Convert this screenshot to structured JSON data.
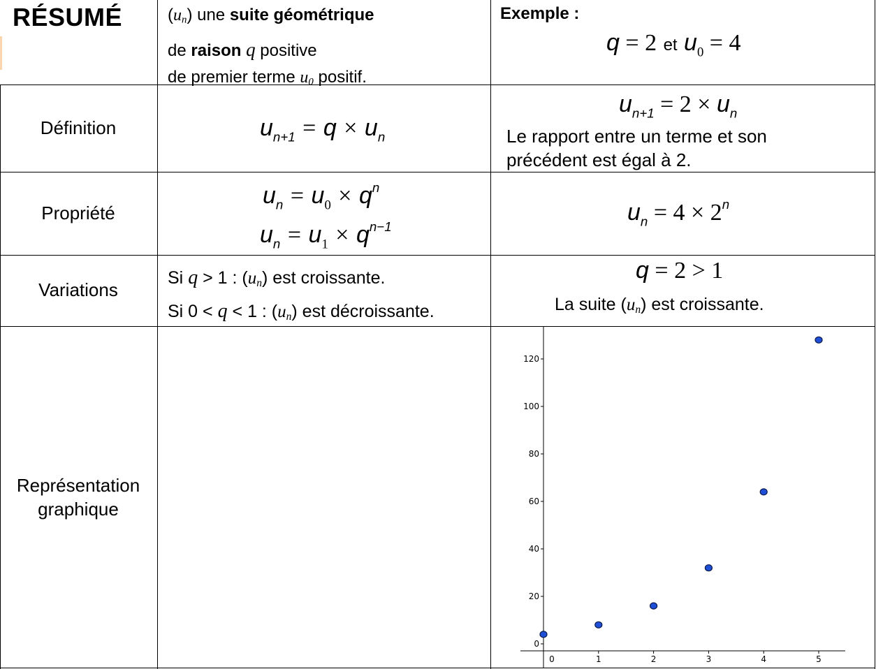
{
  "header": {
    "title": "RÉSUMÉ",
    "intro": {
      "line1_prefix": "(",
      "line1_var": "u",
      "line1_sub": "n",
      "line1_mid": ") une ",
      "line1_bold": "suite géométrique",
      "line2_prefix": "de ",
      "line2_bold": "raison",
      "line2_var": "q",
      "line2_suffix": " positive",
      "line3_prefix": "de premier terme ",
      "line3_var": "u",
      "line3_sub": "0",
      "line3_suffix": " positif."
    },
    "example": {
      "label": "Exemple :",
      "q_var": "q",
      "q_eq": " = 2",
      "and": "et",
      "u_var": "u",
      "u_sub": "0",
      "u_eq": " = 4"
    }
  },
  "rows": {
    "definition": {
      "label": "Définition",
      "formula": {
        "lhs_var": "u",
        "lhs_sub": "n+1",
        "eq": " = ",
        "q": "q",
        "times": " × ",
        "rhs_var": "u",
        "rhs_sub": "n"
      },
      "example_formula": {
        "lhs_var": "u",
        "lhs_sub": "n+1",
        "eq": " = 2 × ",
        "rhs_var": "u",
        "rhs_sub": "n"
      },
      "example_text_line1": "Le rapport entre un terme et son",
      "example_text_line2": "précédent est égal à 2."
    },
    "property": {
      "label": "Propriété",
      "formula1": {
        "lhs_var": "u",
        "lhs_sub": "n",
        "eq": " = ",
        "rhs_var": "u",
        "rhs_sub": "0",
        "times": " × ",
        "q": "q",
        "exp": "n"
      },
      "formula2": {
        "lhs_var": "u",
        "lhs_sub": "n",
        "eq": " = ",
        "rhs_var": "u",
        "rhs_sub": "1",
        "times": " × ",
        "q": "q",
        "exp": "n−1"
      },
      "example_formula": {
        "lhs_var": "u",
        "lhs_sub": "n",
        "eq": " = 4 × 2",
        "exp": "n"
      }
    },
    "variations": {
      "label": "Variations",
      "line1_prefix": "Si ",
      "line1_var": "q",
      "line1_mid": " > 1 : (",
      "line1_u": "u",
      "line1_sub": "n",
      "line1_suffix": ") est croissante.",
      "line2_prefix": "Si 0 < ",
      "line2_var": "q",
      "line2_mid": " < 1 : (",
      "line2_u": "u",
      "line2_sub": "n",
      "line2_suffix": ") est décroissante.",
      "example_q": "q",
      "example_ineq": " = 2 > 1",
      "example_text_prefix": "La suite (",
      "example_text_u": "u",
      "example_text_sub": "n",
      "example_text_suffix": ") est croissante."
    },
    "graph": {
      "label_line1": "Représentation",
      "label_line2": "graphique"
    }
  },
  "chart_data": {
    "type": "scatter",
    "x": [
      0,
      1,
      2,
      3,
      4,
      5
    ],
    "y": [
      4,
      8,
      16,
      32,
      64,
      128
    ],
    "xticks": [
      "0",
      "1",
      "2",
      "3",
      "4",
      "5"
    ],
    "yticks": [
      "0",
      "20",
      "40",
      "60",
      "80",
      "100",
      "120"
    ],
    "xlim": [
      -0.4,
      5.4
    ],
    "ylim": [
      -3,
      131
    ],
    "grid": false,
    "point_color": "#1f4fd6",
    "point_edge": "#0a1a4a"
  }
}
